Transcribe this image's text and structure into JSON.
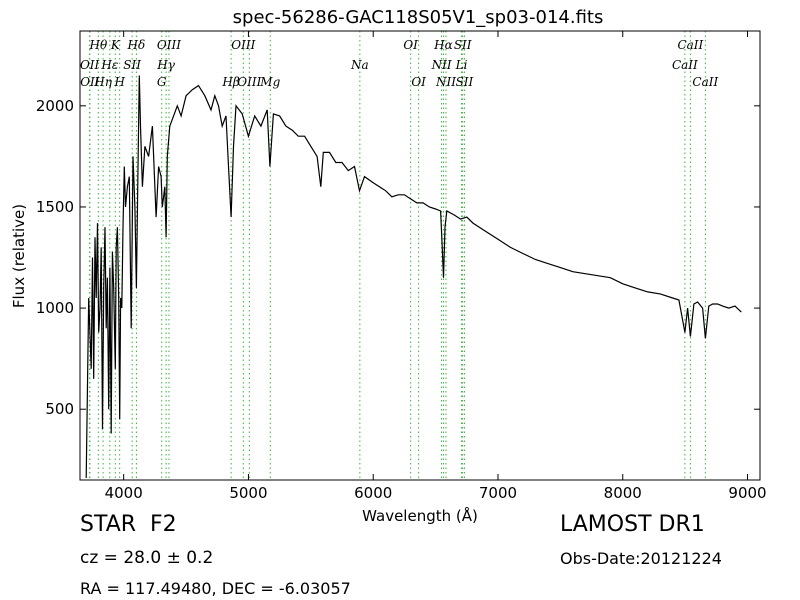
{
  "chart_data": {
    "type": "line",
    "title": "spec-56286-GAC118S05V1_sp03-014.fits",
    "xlabel": "Wavelength (Å)",
    "ylabel": "Flux (relative)",
    "xlim": [
      3650,
      9100
    ],
    "ylim": [
      150,
      2370
    ],
    "xticks": [
      4000,
      5000,
      6000,
      7000,
      8000,
      9000
    ],
    "yticks": [
      500,
      1000,
      1500,
      2000
    ],
    "grid": false,
    "line_color": "#000000",
    "series": [
      {
        "x": [
          3700,
          3720,
          3740,
          3750,
          3760,
          3770,
          3780,
          3790,
          3800,
          3810,
          3820,
          3830,
          3840,
          3850,
          3860,
          3870,
          3880,
          3890,
          3900,
          3910,
          3920,
          3933,
          3940,
          3950,
          3960,
          3968,
          3975,
          3985,
          3995,
          4005,
          4015,
          4030,
          4045,
          4060,
          4075,
          4090,
          4102,
          4115,
          4125,
          4135,
          4150,
          4170,
          4200,
          4230,
          4260,
          4280,
          4300,
          4310,
          4320,
          4330,
          4340,
          4350,
          4370,
          4400,
          4430,
          4460,
          4500,
          4550,
          4600,
          4650,
          4700,
          4730,
          4760,
          4790,
          4820,
          4840,
          4861,
          4880,
          4900,
          4950,
          5000,
          5050,
          5100,
          5150,
          5172,
          5200,
          5250,
          5300,
          5350,
          5400,
          5450,
          5500,
          5550,
          5580,
          5600,
          5650,
          5700,
          5750,
          5800,
          5850,
          5890,
          5930,
          6000,
          6050,
          6100,
          6150,
          6200,
          6250,
          6300,
          6350,
          6400,
          6450,
          6500,
          6540,
          6550,
          6563,
          6575,
          6590,
          6650,
          6700,
          6750,
          6800,
          6850,
          6900,
          7000,
          7100,
          7200,
          7300,
          7400,
          7500,
          7600,
          7700,
          7800,
          7900,
          8000,
          8100,
          8200,
          8300,
          8400,
          8450,
          8498,
          8520,
          8542,
          8570,
          8600,
          8640,
          8662,
          8690,
          8720,
          8760,
          8800,
          8850,
          8900,
          8950
        ],
        "y": [
          160,
          1050,
          700,
          1250,
          650,
          1350,
          1050,
          1420,
          880,
          1000,
          1300,
          400,
          1100,
          1400,
          900,
          1150,
          500,
          1200,
          380,
          1280,
          1100,
          700,
          1300,
          1400,
          1050,
          450,
          1050,
          1000,
          1400,
          1700,
          1500,
          1600,
          1650,
          900,
          1750,
          1500,
          1100,
          1700,
          2150,
          1900,
          1600,
          1800,
          1750,
          1900,
          1450,
          1700,
          1650,
          1500,
          1550,
          1600,
          1350,
          1750,
          1900,
          1950,
          2000,
          1950,
          2050,
          2080,
          2100,
          2050,
          1980,
          2050,
          2000,
          1900,
          1950,
          1700,
          1450,
          1800,
          2000,
          1960,
          1850,
          1950,
          1900,
          1980,
          1700,
          1960,
          1950,
          1900,
          1880,
          1850,
          1850,
          1800,
          1750,
          1600,
          1770,
          1770,
          1720,
          1720,
          1680,
          1700,
          1580,
          1650,
          1620,
          1600,
          1580,
          1550,
          1560,
          1560,
          1540,
          1520,
          1520,
          1500,
          1490,
          1480,
          1350,
          1150,
          1400,
          1480,
          1460,
          1440,
          1450,
          1420,
          1400,
          1380,
          1340,
          1300,
          1270,
          1240,
          1220,
          1200,
          1180,
          1170,
          1160,
          1150,
          1120,
          1100,
          1080,
          1070,
          1050,
          1040,
          880,
          1000,
          860,
          1020,
          1030,
          1000,
          850,
          1010,
          1020,
          1020,
          1010,
          1000,
          1010,
          980
        ]
      }
    ],
    "line_color_dotted": "#3cb33c",
    "spectral_lines": [
      {
        "name": "Hθ",
        "x": 3797,
        "row": 0
      },
      {
        "name": "K",
        "x": 3933,
        "row": 0
      },
      {
        "name": "Hδ",
        "x": 4102,
        "row": 0
      },
      {
        "name": "OIII",
        "x": 4363,
        "row": 0
      },
      {
        "name": "OIII",
        "x": 4959,
        "row": 0
      },
      {
        "name": "OI",
        "x": 6300,
        "row": 0
      },
      {
        "name": "Hα",
        "x": 6563,
        "row": 0
      },
      {
        "name": "SII",
        "x": 6717,
        "row": 0
      },
      {
        "name": "CaII",
        "x": 8542,
        "row": 0
      },
      {
        "name": "OII",
        "x": 3727,
        "row": 1
      },
      {
        "name": "Hε",
        "x": 3889,
        "row": 1
      },
      {
        "name": "SII",
        "x": 4068,
        "row": 1
      },
      {
        "name": "Hγ",
        "x": 4340,
        "row": 1
      },
      {
        "name": "Na",
        "x": 5893,
        "row": 1
      },
      {
        "name": "NII",
        "x": 6548,
        "row": 1
      },
      {
        "name": "Li",
        "x": 6708,
        "row": 1
      },
      {
        "name": "CaII",
        "x": 8498,
        "row": 1
      },
      {
        "name": "OII",
        "x": 3729,
        "row": 2
      },
      {
        "name": "Hη",
        "x": 3835,
        "row": 2
      },
      {
        "name": "H",
        "x": 3968,
        "row": 2
      },
      {
        "name": "G",
        "x": 4305,
        "row": 2
      },
      {
        "name": "Hβ",
        "x": 4861,
        "row": 2
      },
      {
        "name": "OIII",
        "x": 5007,
        "row": 2
      },
      {
        "name": "Mg",
        "x": 5175,
        "row": 2
      },
      {
        "name": "OI",
        "x": 6364,
        "row": 2
      },
      {
        "name": "NII",
        "x": 6583,
        "row": 2
      },
      {
        "name": "SII",
        "x": 6731,
        "row": 2
      },
      {
        "name": "CaII",
        "x": 8662,
        "row": 2
      }
    ]
  },
  "info": {
    "object_type": "STAR",
    "subclass": "F2",
    "cz_text": "cz = 28.0  ± 0.2",
    "coords_text": "RA = 117.49480, DEC = -6.03057",
    "survey": "LAMOST DR1",
    "obs_date": "Obs-Date:20121224"
  }
}
